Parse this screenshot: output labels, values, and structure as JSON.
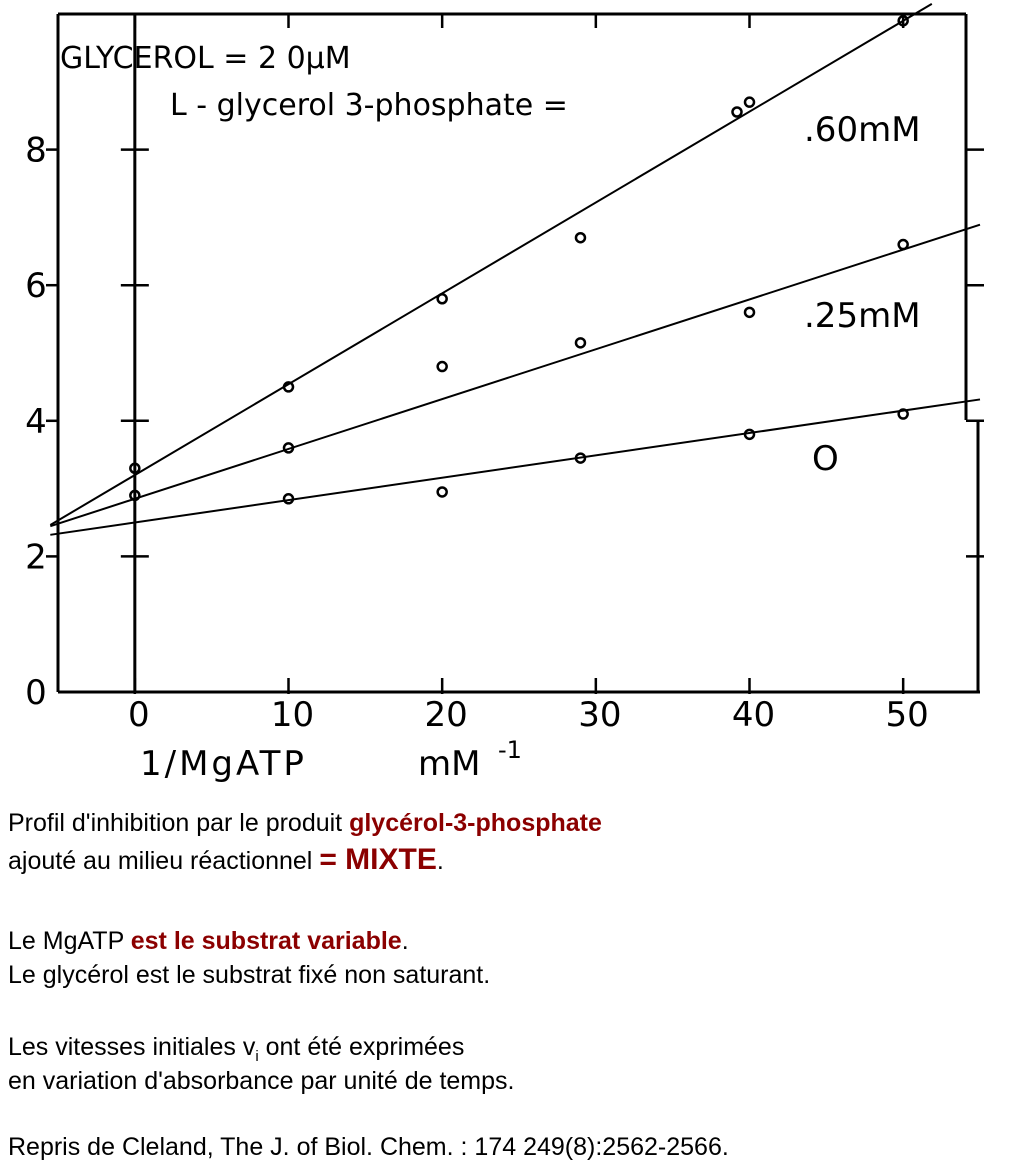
{
  "chart_data": {
    "type": "scatter",
    "title": "GLYCEROL = 2 0μM",
    "legend_text": "L - glycerol 3-phosphate =",
    "xlabel": "1/MgATP",
    "xunit": "mM",
    "xunit_exp": "-1",
    "xlim": [
      -5,
      55
    ],
    "ylim": [
      0,
      10
    ],
    "x_ticks": [
      0,
      10,
      20,
      30,
      40,
      50
    ],
    "x_tick_labels": [
      "0",
      "10",
      "20",
      "30",
      "40",
      "50"
    ],
    "y_ticks": [
      0,
      2,
      4,
      6,
      8
    ],
    "y_tick_labels": [
      "0",
      "2",
      "4",
      "6",
      "8"
    ],
    "grid": false,
    "series": [
      {
        "name": ".60mM",
        "x": [
          0,
          10,
          20,
          29,
          40,
          50
        ],
        "y": [
          3.3,
          4.5,
          5.8,
          6.7,
          8.7,
          9.9
        ],
        "fit": {
          "intercept": 3.2,
          "slope": 0.134
        }
      },
      {
        "name": ".25mM",
        "x": [
          10,
          20,
          29,
          40,
          50
        ],
        "y": [
          3.6,
          4.8,
          5.15,
          5.6,
          6.6
        ],
        "fit": {
          "intercept": 2.85,
          "slope": 0.0735
        }
      },
      {
        "name": "O",
        "x": [
          0,
          10,
          20,
          29,
          40,
          50
        ],
        "y": [
          2.9,
          2.85,
          2.95,
          3.45,
          3.8,
          4.1
        ],
        "fit": {
          "intercept": 2.5,
          "slope": 0.033
        }
      }
    ]
  },
  "caption": {
    "line1_prefix": "Profil d'inhibition par le produit ",
    "line1_highlight": "glycérol-3-phosphate",
    "line2_prefix": "ajouté au milieu réactionnel ",
    "line2_highlight": "= MIXTE",
    "line2_suffix": ".",
    "line3_prefix": "Le MgATP ",
    "line3_highlight": "est le substrat variable",
    "line3_suffix": ".",
    "line4": "Le glycérol est le substrat fixé non saturant.",
    "line5_prefix": "Les vitesses initiales v",
    "line5_sub": "i",
    "line5_suffix": " ont été exprimées",
    "line6": "en variation d'absorbance par unité de temps.",
    "line7": "Repris  de Cleland, The J. of Biol. Chem. : 174  249(8):2562-2566."
  }
}
